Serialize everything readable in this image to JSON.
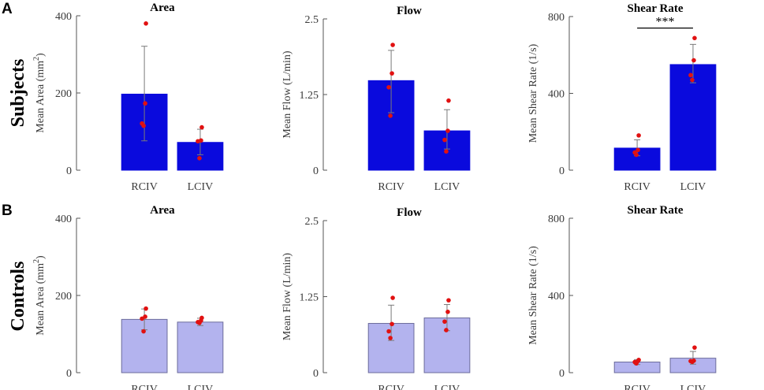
{
  "figure": {
    "panel_letters": [
      "A",
      "B"
    ],
    "row_labels": [
      "Subjects",
      "Controls"
    ]
  },
  "colors": {
    "subjects_bar": "#0a0add",
    "controls_bar": "#b3b3ee",
    "controls_bar_edge": "#6c6c9c",
    "point": "#e11111",
    "errorbar": "#7a7a7a",
    "axis": "#555555"
  },
  "chart_data": [
    {
      "id": "subjects-area",
      "type": "bar",
      "title": "Area",
      "ylabel": "Mean Area (mm",
      "ylabel_sup": "2",
      "ylabel_tail": ")",
      "categories": [
        "RCIV",
        "LCIV"
      ],
      "values": [
        197,
        72
      ],
      "error_upper": [
        321,
        106
      ],
      "error_lower": [
        76,
        40
      ],
      "points": [
        [
          380,
          173,
          121,
          115
        ],
        [
          111,
          77,
          75,
          31
        ]
      ],
      "ylim": [
        0,
        400
      ],
      "yticks": [
        "0",
        "200",
        "400"
      ],
      "style": "subjects"
    },
    {
      "id": "subjects-flow",
      "type": "bar",
      "title": "Flow",
      "ylabel": "Mean Flow (L/min)",
      "categories": [
        "RCIV",
        "LCIV"
      ],
      "values": [
        1.48,
        0.65
      ],
      "error_upper": [
        1.98,
        1.0
      ],
      "error_lower": [
        0.95,
        0.35
      ],
      "points": [
        [
          2.07,
          1.6,
          1.37,
          0.9
        ],
        [
          1.15,
          0.65,
          0.5,
          0.31
        ]
      ],
      "ylim": [
        0,
        2.5
      ],
      "yticks": [
        "0",
        "1.25",
        "2.5"
      ],
      "style": "subjects"
    },
    {
      "id": "subjects-shear",
      "type": "bar",
      "title": "Shear Rate",
      "ylabel": "Mean Shear Rate (1/s)",
      "categories": [
        "RCIV",
        "LCIV"
      ],
      "values": [
        115,
        550
      ],
      "error_upper": [
        158,
        655
      ],
      "error_lower": [
        75,
        455
      ],
      "points": [
        [
          181,
          105,
          92,
          80
        ],
        [
          688,
          572,
          495,
          470
        ]
      ],
      "ylim": [
        0,
        800
      ],
      "yticks": [
        "0",
        "400",
        "800"
      ],
      "significance": "***",
      "significance_y": 740,
      "style": "subjects"
    },
    {
      "id": "controls-area",
      "type": "bar",
      "title": "Area",
      "ylabel": "Mean Area (mm",
      "ylabel_sup": "2",
      "ylabel_tail": ")",
      "categories": [
        "RCIV",
        "LCIV"
      ],
      "values": [
        138,
        131
      ],
      "error_upper": [
        165,
        141
      ],
      "error_lower": [
        111,
        122
      ],
      "points": [
        [
          166,
          145,
          140,
          107
        ],
        [
          142,
          135,
          131,
          129
        ]
      ],
      "ylim": [
        0,
        400
      ],
      "yticks": [
        "0",
        "200",
        "400"
      ],
      "style": "controls"
    },
    {
      "id": "controls-flow",
      "type": "bar",
      "title": "Flow",
      "ylabel": "Mean Flow (L/min)",
      "categories": [
        "RCIV",
        "LCIV"
      ],
      "values": [
        0.81,
        0.9
      ],
      "error_upper": [
        1.11,
        1.12
      ],
      "error_lower": [
        0.53,
        0.69
      ],
      "points": [
        [
          1.23,
          0.8,
          0.68,
          0.57
        ],
        [
          1.19,
          1.0,
          0.84,
          0.7
        ]
      ],
      "ylim": [
        0,
        2.5
      ],
      "yticks": [
        "0",
        "1.25",
        "2.5"
      ],
      "style": "controls"
    },
    {
      "id": "controls-shear",
      "type": "bar",
      "title": "Shear Rate",
      "ylabel": "Mean Shear Rate (1/s)",
      "categories": [
        "RCIV",
        "LCIV"
      ],
      "values": [
        55,
        75
      ],
      "error_upper": [
        68,
        110
      ],
      "error_lower": [
        42,
        44
      ],
      "points": [
        [
          66,
          60,
          55,
          48
        ],
        [
          130,
          62,
          60,
          56
        ]
      ],
      "ylim": [
        0,
        800
      ],
      "yticks": [
        "0",
        "400",
        "800"
      ],
      "style": "controls"
    }
  ]
}
